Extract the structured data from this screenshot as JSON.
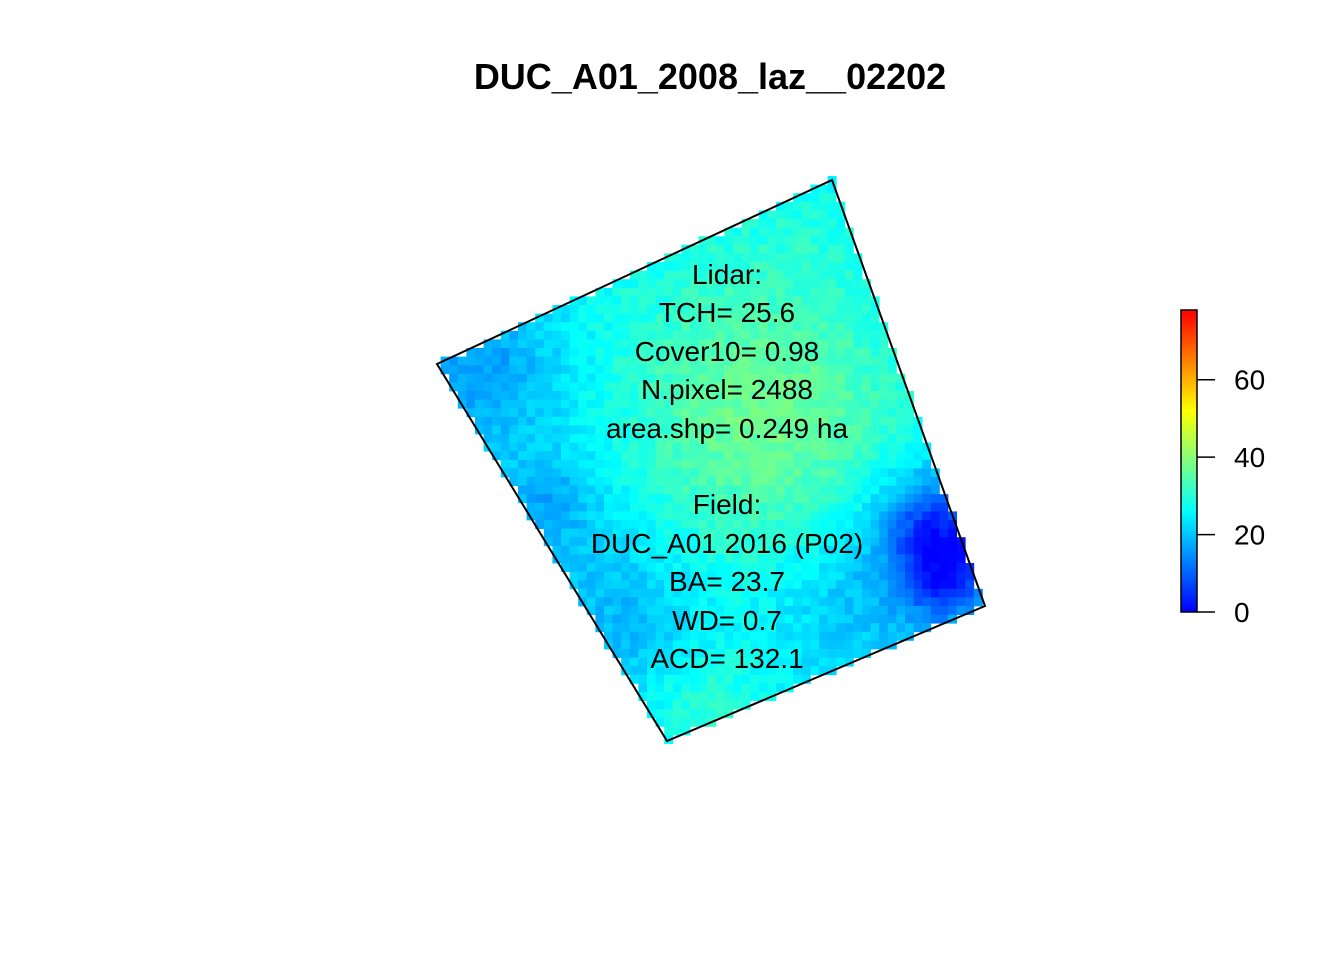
{
  "chart_data": {
    "type": "heatmap",
    "title": "DUC_A01_2008_laz__02202",
    "colorbar": {
      "min": 0,
      "max": 78,
      "ticks": [
        0,
        20,
        40,
        60
      ],
      "tick_labels": [
        "0",
        "20",
        "40",
        "60"
      ],
      "colors": [
        "#0000FF",
        "#00FFFF",
        "#FFFF00",
        "#FF0000"
      ]
    },
    "annotation": {
      "lidar_heading": "Lidar:",
      "tch": "TCH= 25.6",
      "cover10": "Cover10= 0.98",
      "npixel": "N.pixel= 2488",
      "area": "area.shp= 0.249 ha",
      "field_heading": "Field:",
      "plot_id": "DUC_A01 2016 (P02)",
      "ba": "BA= 23.7",
      "wd": "WD= 0.7",
      "acd": "ACD= 132.1"
    },
    "value_summary": {
      "TCH": 25.6,
      "Cover10": 0.98,
      "N_pixel": 2488,
      "area_ha": 0.249
    }
  }
}
